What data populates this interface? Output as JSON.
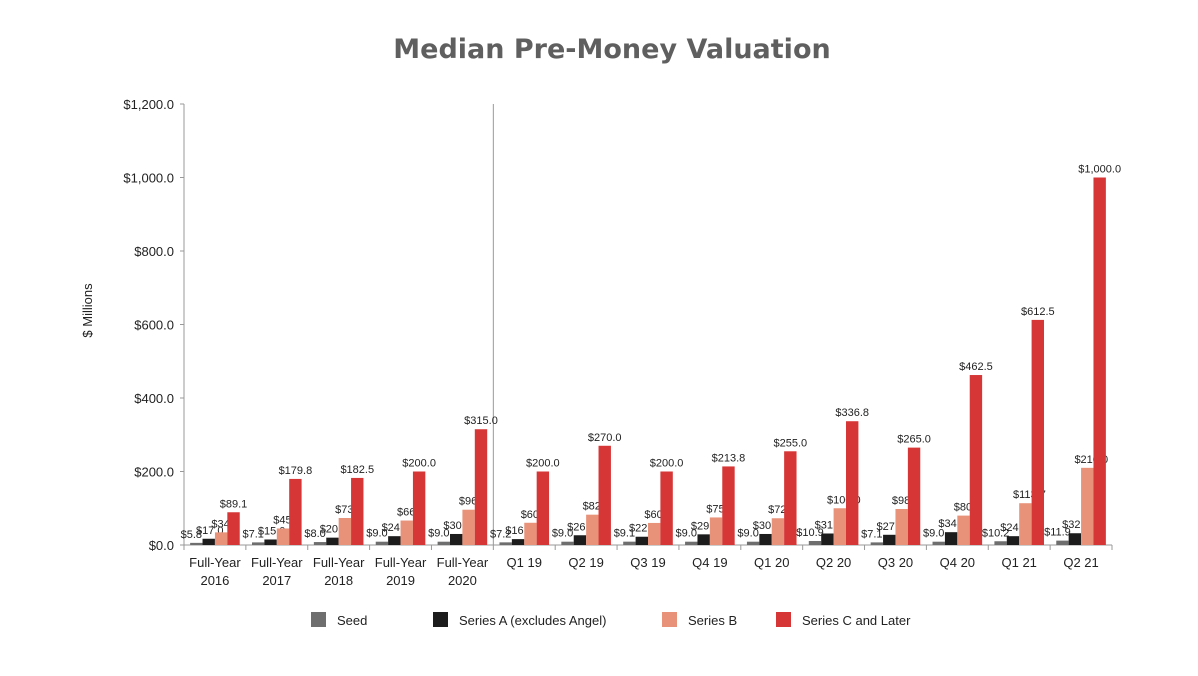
{
  "chart_data": {
    "type": "bar",
    "title": "Median Pre-Money Valuation",
    "ylabel": "$ Millions",
    "xlabel": "",
    "ylim": [
      0,
      1200
    ],
    "yticks": [
      "$0.0",
      "$200.0",
      "$400.0",
      "$600.0",
      "$800.0",
      "$1,000.0",
      "$1,200.0"
    ],
    "ytick_values": [
      0,
      200,
      400,
      600,
      800,
      1000,
      1200
    ],
    "grid": false,
    "legend_position": "bottom",
    "categories": [
      [
        "Full-Year",
        "2016"
      ],
      [
        "Full-Year",
        "2017"
      ],
      [
        "Full-Year",
        "2018"
      ],
      [
        "Full-Year",
        "2019"
      ],
      [
        "Full-Year",
        "2020"
      ],
      [
        "Q1 19"
      ],
      [
        "Q2 19"
      ],
      [
        "Q3 19"
      ],
      [
        "Q4 19"
      ],
      [
        "Q1 20"
      ],
      [
        "Q2 20"
      ],
      [
        "Q3 20"
      ],
      [
        "Q4 20"
      ],
      [
        "Q1 21"
      ],
      [
        "Q2 21"
      ]
    ],
    "series": [
      {
        "name": "Seed",
        "color": "#6e6e6e",
        "values": [
          5.8,
          7.1,
          8.0,
          9.0,
          9.0,
          7.2,
          9.0,
          9.1,
          9.0,
          9.0,
          10.9,
          7.1,
          9.0,
          10.2,
          11.9
        ],
        "labels": [
          "$5.8",
          "$7.1",
          "$8.0",
          "$9.0",
          "$9.0",
          "$7.2",
          "$9.0",
          "$9.1",
          "$9.0",
          "$9.0",
          "$10.9",
          "$7.1",
          "$9.0",
          "$10.2",
          "$11.9"
        ]
      },
      {
        "name": "Series A (excludes Angel)",
        "color": "#1c1c1c",
        "values": [
          17.0,
          15.0,
          20.0,
          24.0,
          30.0,
          16.0,
          26.5,
          22.5,
          29.0,
          30.0,
          31.3,
          27.8,
          34.9,
          24.0,
          32.0
        ],
        "labels": [
          "$17.0",
          "$15.0",
          "$20.0",
          "$24.0",
          "$30.0",
          "$16.0",
          "$26.5",
          "$22.5",
          "$29.0",
          "$30.0",
          "$31.3",
          "$27.8",
          "$34.9",
          "$24.0",
          "$32.0"
        ]
      },
      {
        "name": "Series B",
        "color": "#e8927a",
        "values": [
          34.4,
          45.0,
          73.5,
          66.6,
          96.0,
          60.5,
          82.5,
          60.0,
          75.0,
          72.8,
          100.0,
          98.0,
          80.0,
          113.7,
          210.0
        ],
        "labels": [
          "$34.4",
          "$45.0",
          "$73.5",
          "$66.6",
          "$96.0",
          "$60.5",
          "$82.5",
          "$60.0",
          "$75.0",
          "$72.8",
          "$100.0",
          "$98.0",
          "$80.0",
          "$113.7",
          "$210.0"
        ]
      },
      {
        "name": "Series C and Later",
        "color": "#d63636",
        "values": [
          89.1,
          179.8,
          182.5,
          200.0,
          315.0,
          200.0,
          270.0,
          200.0,
          213.8,
          255.0,
          336.8,
          265.0,
          462.5,
          612.5,
          1000.0
        ],
        "labels": [
          "$89.1",
          "$179.8",
          "$182.5",
          "$200.0",
          "$315.0",
          "$200.0",
          "$270.0",
          "$200.0",
          "$213.8",
          "$255.0",
          "$336.8",
          "$265.0",
          "$462.5",
          "$612.5",
          "$1,000.0"
        ]
      }
    ],
    "divider_after_category_index": 4
  }
}
